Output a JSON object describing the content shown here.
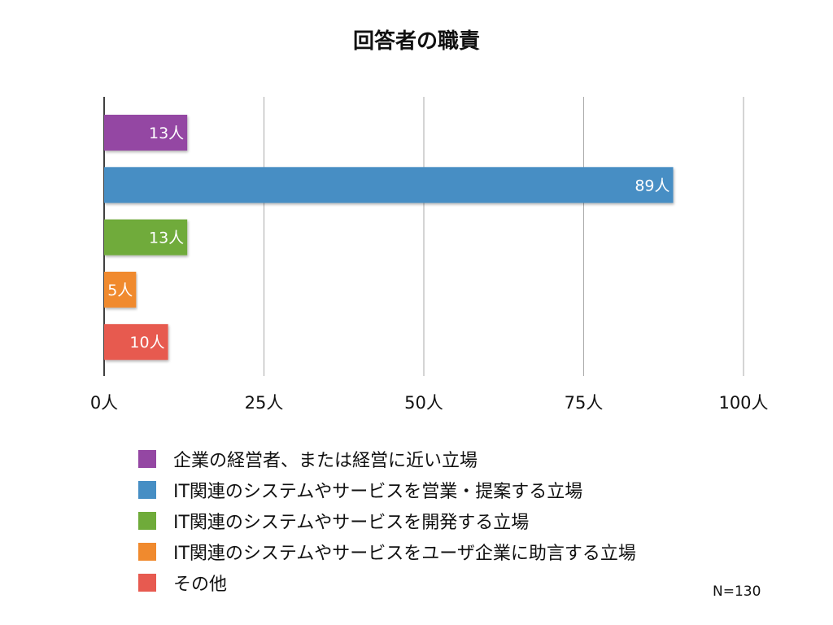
{
  "chart_data": {
    "type": "bar",
    "orientation": "horizontal",
    "title": "回答者の職責",
    "categories": [
      "企業の経営者、または経営に近い立場",
      "IT関連のシステムやサービスを営業・提案する立場",
      "IT関連のシステムやサービスを開発する立場",
      "IT関連のシステムやサービスをユーザ企業に助言する立場",
      "その他"
    ],
    "values": [
      13,
      89,
      13,
      5,
      10
    ],
    "data_labels": [
      "13人",
      "89人",
      "13人",
      "5人",
      "10人"
    ],
    "colors": [
      "#9447a3",
      "#468ec4",
      "#6fab3a",
      "#f08a2e",
      "#e75a50"
    ],
    "xlim": [
      0,
      100
    ],
    "x_ticks": [
      0,
      25,
      50,
      75,
      100
    ],
    "x_tick_labels": [
      "0人",
      "25人",
      "50人",
      "75人",
      "100人"
    ],
    "grid": true,
    "legend_position": "bottom",
    "annotation": "N=130"
  }
}
